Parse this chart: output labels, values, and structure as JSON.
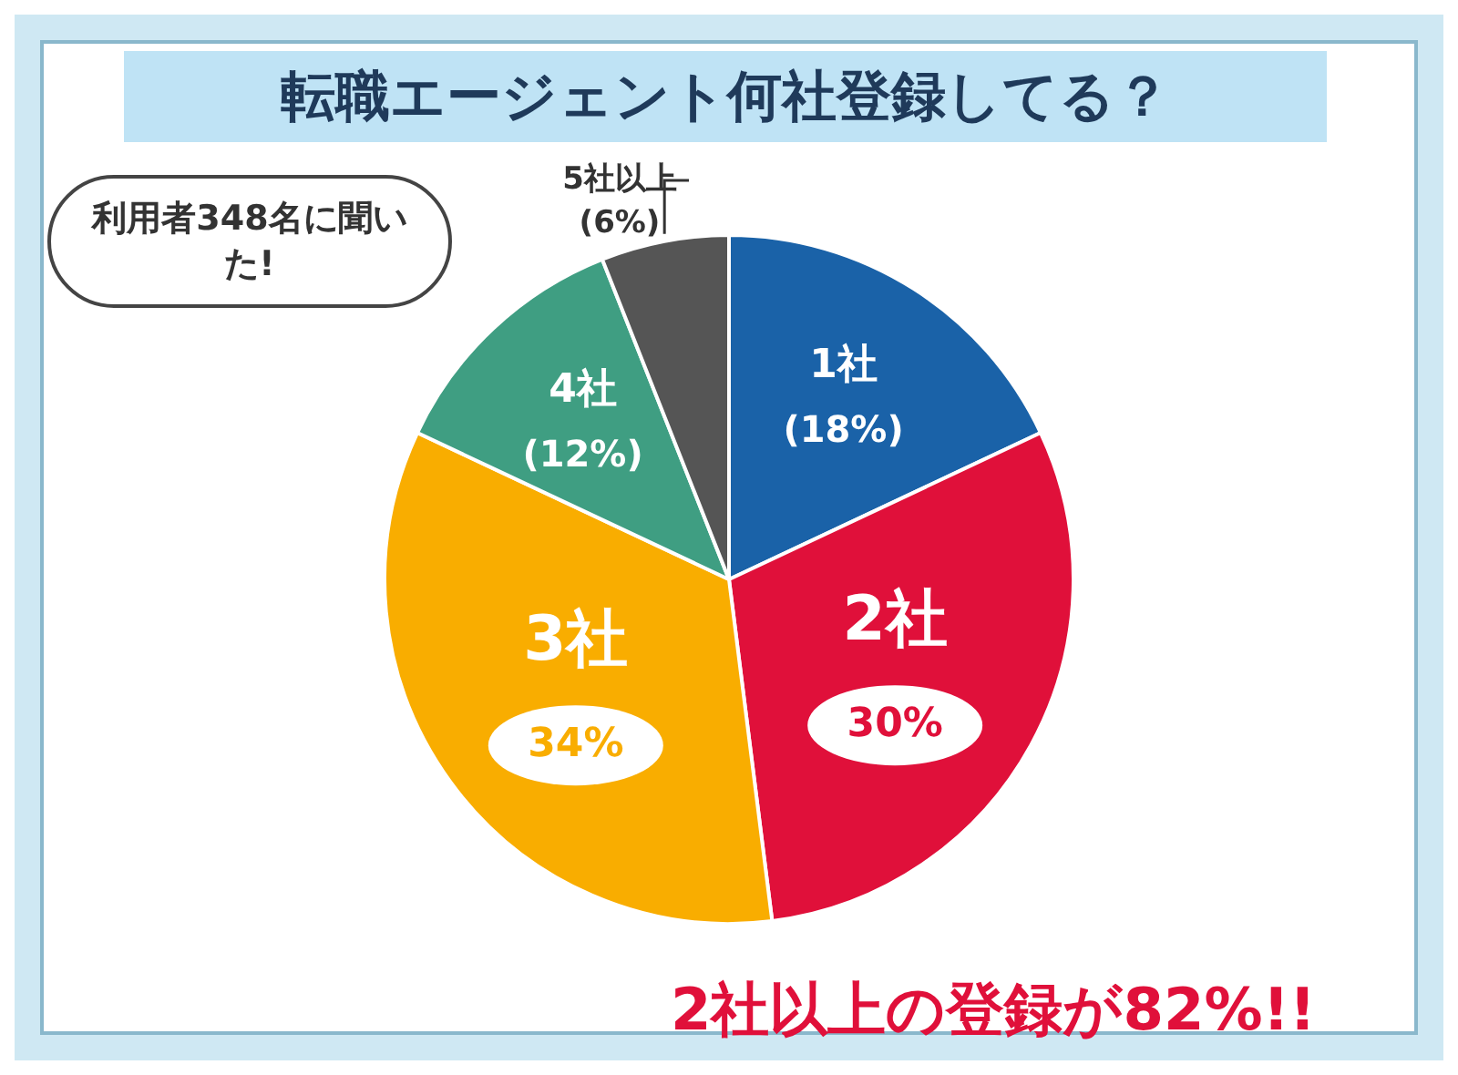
{
  "chart_data": {
    "type": "pie",
    "title": "転職エージェント何社登録してる？",
    "categories": [
      "1社",
      "2社",
      "3社",
      "4社",
      "5社以上"
    ],
    "values": [
      18,
      30,
      34,
      12,
      6
    ],
    "value_labels": [
      "(18%)",
      "30%",
      "34%",
      "(12%)",
      "(6%)"
    ],
    "colors": [
      "#1a62a8",
      "#e0103a",
      "#f9ad00",
      "#3f9e82",
      "#555555"
    ],
    "legend": false,
    "annotations": [
      "利用者348名に聞いた!",
      "2社以上の登録が82%!!"
    ]
  }
}
